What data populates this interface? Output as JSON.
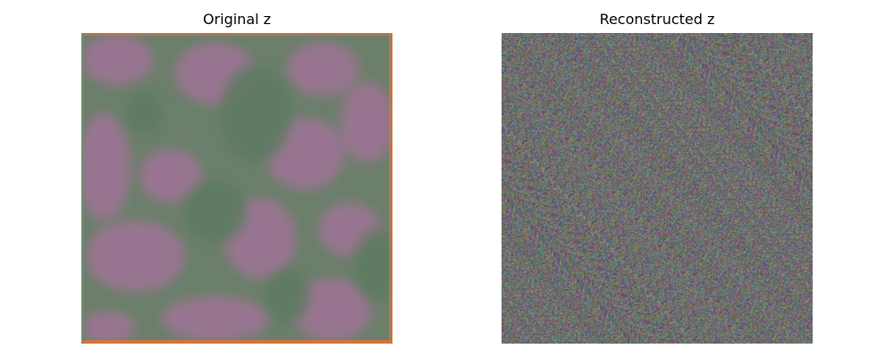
{
  "figure": {
    "panels": [
      {
        "title": "Original z"
      },
      {
        "title": "Reconstructed z"
      }
    ]
  },
  "colors": {
    "background": "#ffffff",
    "green_region": "#6a7d68",
    "pink_region": "#9a7491",
    "edge_orange": "#d9743a"
  }
}
